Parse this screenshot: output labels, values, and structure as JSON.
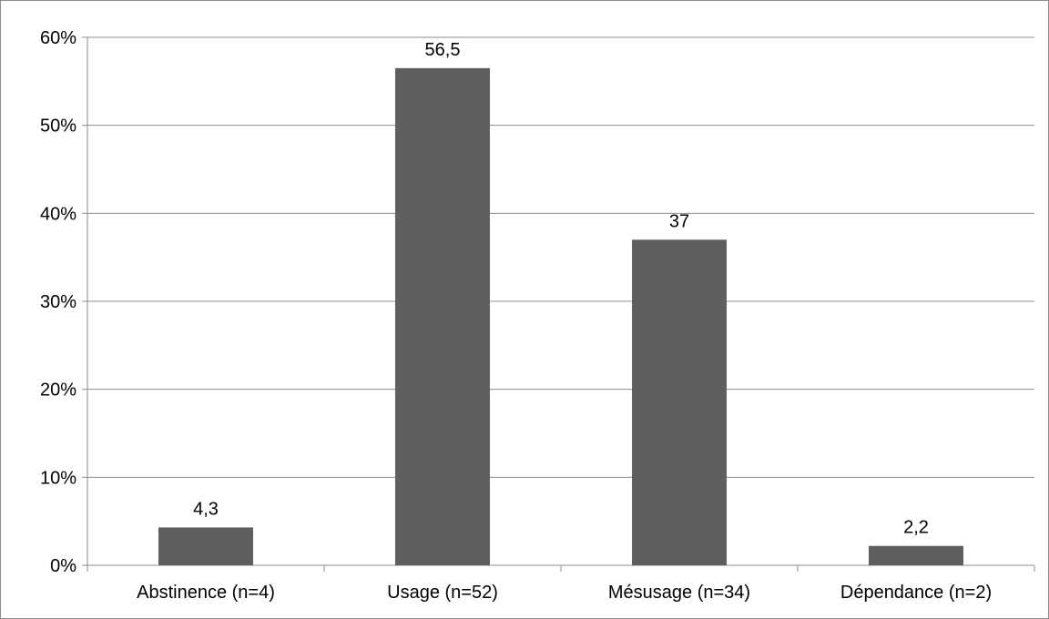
{
  "chart_data": {
    "type": "bar",
    "categories": [
      "Abstinence (n=4)",
      "Usage (n=52)",
      "Mésusage (n=34)",
      "Dépendance (n=2)"
    ],
    "values": [
      4.3,
      56.5,
      37,
      2.2
    ],
    "data_labels": [
      "4,3",
      "56,5",
      "37",
      "2,2"
    ],
    "y_ticks": [
      "0%",
      "10%",
      "20%",
      "30%",
      "40%",
      "50%",
      "60%"
    ],
    "ylim": [
      0,
      60
    ],
    "title": "",
    "xlabel": "",
    "ylabel": "",
    "grid": true,
    "legend": "none",
    "bar_color": "#5f5f5f",
    "grid_color": "#8c8c8c"
  }
}
